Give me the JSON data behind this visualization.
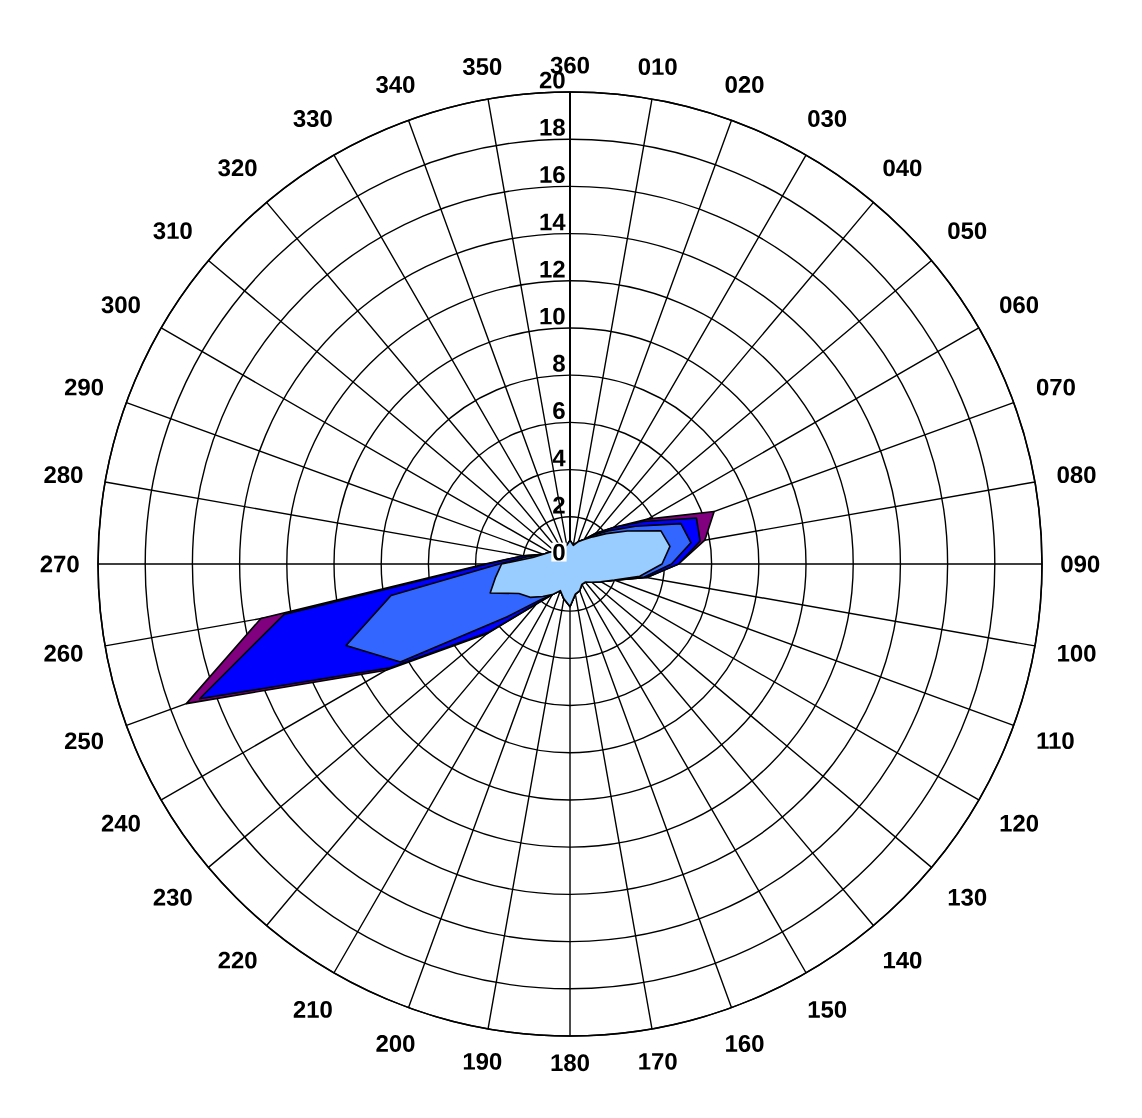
{
  "chart_data": {
    "type": "radar",
    "categories": [
      "360",
      "010",
      "020",
      "030",
      "040",
      "050",
      "060",
      "070",
      "080",
      "090",
      "100",
      "110",
      "120",
      "130",
      "140",
      "150",
      "160",
      "170",
      "180",
      "190",
      "200",
      "210",
      "220",
      "230",
      "240",
      "250",
      "260",
      "270",
      "280",
      "290",
      "300",
      "310",
      "320",
      "330",
      "340",
      "350"
    ],
    "series": [
      {
        "color": "#800080",
        "values": [
          1.0,
          0.8,
          1.0,
          1.2,
          1.7,
          2.4,
          3.8,
          6.5,
          5.8,
          4.6,
          3.3,
          2.0,
          1.5,
          1.2,
          1.0,
          1.0,
          1.2,
          1.3,
          1.8,
          1.5,
          1.2,
          1.5,
          2.2,
          4.6,
          9.0,
          17.3,
          13.3,
          3.6,
          2.0,
          1.2,
          1.0,
          0.8,
          0.8,
          0.8,
          0.8,
          0.8
        ]
      },
      {
        "color": "#0000ff",
        "values": [
          1.0,
          0.8,
          1.0,
          1.2,
          1.7,
          2.4,
          3.6,
          5.7,
          5.6,
          4.6,
          3.3,
          2.0,
          1.5,
          1.2,
          1.0,
          1.0,
          1.2,
          1.3,
          1.8,
          1.5,
          1.2,
          1.5,
          2.2,
          4.5,
          8.8,
          16.7,
          12.3,
          3.5,
          2.0,
          1.2,
          1.0,
          0.8,
          0.8,
          0.8,
          0.8,
          0.8
        ]
      },
      {
        "color": "#3366ff",
        "values": [
          1.0,
          0.8,
          1.0,
          1.2,
          1.6,
          2.2,
          3.2,
          5.0,
          5.2,
          4.3,
          3.2,
          2.0,
          1.5,
          1.2,
          1.0,
          1.0,
          1.2,
          1.3,
          1.8,
          1.5,
          1.2,
          1.5,
          2.0,
          3.5,
          8.3,
          10.1,
          7.7,
          3.0,
          1.8,
          1.2,
          1.0,
          0.8,
          0.8,
          0.8,
          0.8,
          0.8
        ]
      },
      {
        "color": "#99ccff",
        "values": [
          1.0,
          0.8,
          1.0,
          1.2,
          1.5,
          2.0,
          2.8,
          4.1,
          4.3,
          3.9,
          3.0,
          2.0,
          1.5,
          1.2,
          1.0,
          1.0,
          1.2,
          1.3,
          1.8,
          1.5,
          1.2,
          1.5,
          1.8,
          2.2,
          2.5,
          3.6,
          3.2,
          2.9,
          1.6,
          1.2,
          1.0,
          0.8,
          0.8,
          0.8,
          0.8,
          0.8
        ]
      }
    ],
    "ylim": [
      0,
      20
    ],
    "yticks": [
      0,
      2,
      4,
      6,
      8,
      10,
      12,
      14,
      16,
      18,
      20
    ],
    "grid": true
  }
}
